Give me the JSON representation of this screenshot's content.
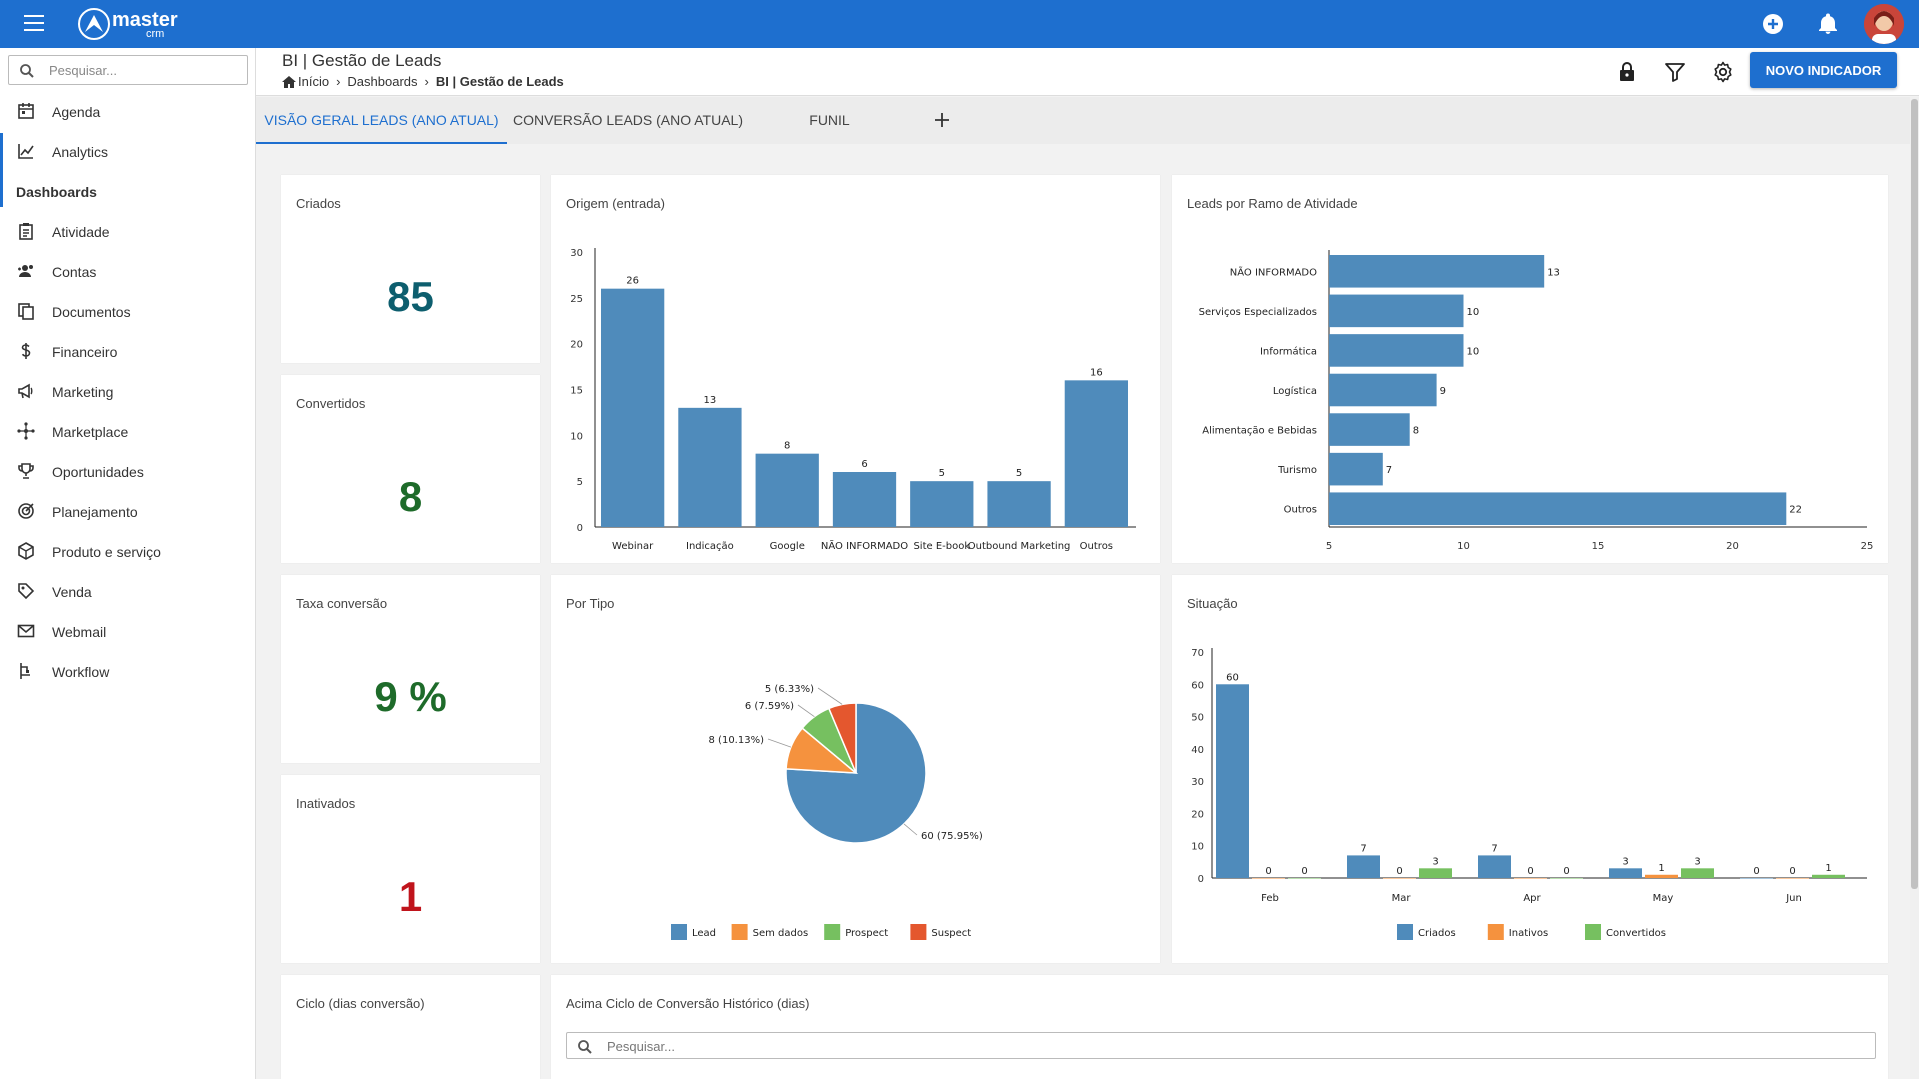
{
  "app": {
    "logo_text": "master",
    "logo_sub": "crm"
  },
  "sidebar": {
    "search_placeholder": "Pesquisar...",
    "items": [
      {
        "label": "Agenda",
        "icon": "calendar-icon"
      },
      {
        "label": "Analytics",
        "icon": "analytics-icon"
      },
      {
        "label": "Dashboards",
        "icon": ""
      },
      {
        "label": "Atividade",
        "icon": "clipboard-icon"
      },
      {
        "label": "Contas",
        "icon": "users-icon"
      },
      {
        "label": "Documentos",
        "icon": "documents-icon"
      },
      {
        "label": "Financeiro",
        "icon": "dollar-icon"
      },
      {
        "label": "Marketing",
        "icon": "megaphone-icon"
      },
      {
        "label": "Marketplace",
        "icon": "hub-icon"
      },
      {
        "label": "Oportunidades",
        "icon": "trophy-icon"
      },
      {
        "label": "Planejamento",
        "icon": "target-icon"
      },
      {
        "label": "Produto e serviço",
        "icon": "box-icon"
      },
      {
        "label": "Venda",
        "icon": "tag-icon"
      },
      {
        "label": "Webmail",
        "icon": "mail-icon"
      },
      {
        "label": "Workflow",
        "icon": "workflow-icon"
      }
    ]
  },
  "header": {
    "title": "BI | Gestão de Leads",
    "breadcrumb": [
      "Início",
      "Dashboards",
      "BI | Gestão de Leads"
    ],
    "new_button": "NOVO INDICADOR"
  },
  "tabs": [
    {
      "label": "VISÃO GERAL LEADS (ANO ATUAL)",
      "active": true
    },
    {
      "label": "CONVERSÃO LEADS (ANO ATUAL)",
      "active": false
    },
    {
      "label": "FUNIL",
      "active": false
    }
  ],
  "kpis": [
    {
      "title": "Criados",
      "value": "85",
      "color": "#0d5e6e"
    },
    {
      "title": "Convertidos",
      "value": "8",
      "color": "#1e6b2a"
    },
    {
      "title": "Taxa conversão",
      "value": "9 %",
      "color": "#1e6b2a"
    },
    {
      "title": "Inativados",
      "value": "1",
      "color": "#c0141c"
    },
    {
      "title": "Ciclo (dias conversão)",
      "value": "",
      "color": "#333333"
    }
  ],
  "bottom_card": {
    "title": "Acima Ciclo de Conversão Histórico (dias)",
    "search_placeholder": "Pesquisar..."
  },
  "chart_data": [
    {
      "type": "bar",
      "title": "Origem (entrada)",
      "categories": [
        "Webinar",
        "Indicação",
        "Google",
        "NÃO INFORMADO",
        "Site E-book",
        "Outbound Marketing",
        "Outros"
      ],
      "values": [
        26,
        13,
        8,
        6,
        5,
        5,
        16
      ],
      "ylim": [
        0,
        30
      ],
      "yticks": [
        0,
        5,
        10,
        15,
        20,
        25,
        30
      ],
      "color": "#4f8bbb"
    },
    {
      "type": "bar",
      "orientation": "horizontal",
      "title": "Leads por Ramo de Atividade",
      "categories": [
        "NÃO INFORMADO",
        "Serviços Especializados",
        "Informática",
        "Logística",
        "Alimentação e Bebidas",
        "Turismo",
        "Outros"
      ],
      "values": [
        13,
        10,
        10,
        9,
        8,
        7,
        22
      ],
      "xlim": [
        5,
        25
      ],
      "xticks": [
        5,
        10,
        15,
        20,
        25
      ],
      "color": "#4f8bbb"
    },
    {
      "type": "pie",
      "title": "Por Tipo",
      "slices": [
        {
          "name": "Lead",
          "value": 60,
          "label": "60 (75.95%)",
          "color": "#4f8bbb"
        },
        {
          "name": "Sem dados",
          "value": 8,
          "label": "8 (10.13%)",
          "color": "#f5923e"
        },
        {
          "name": "Prospect",
          "value": 6,
          "label": "6 (7.59%)",
          "color": "#76c060"
        },
        {
          "name": "Suspect",
          "value": 5,
          "label": "5 (6.33%)",
          "color": "#e4572e"
        }
      ],
      "legend": "bottom"
    },
    {
      "type": "bar",
      "title": "Situação",
      "categories": [
        "Feb",
        "Mar",
        "Apr",
        "May",
        "Jun"
      ],
      "series": [
        {
          "name": "Criados",
          "values": [
            60,
            7,
            7,
            3,
            0
          ],
          "color": "#4f8bbb"
        },
        {
          "name": "Inativos",
          "values": [
            0,
            0,
            0,
            1,
            0
          ],
          "color": "#f5923e"
        },
        {
          "name": "Convertidos",
          "values": [
            0,
            3,
            0,
            3,
            1
          ],
          "color": "#76c060"
        }
      ],
      "ylim": [
        0,
        70
      ],
      "yticks": [
        0,
        10,
        20,
        30,
        40,
        50,
        60,
        70
      ],
      "legend": "bottom"
    }
  ]
}
